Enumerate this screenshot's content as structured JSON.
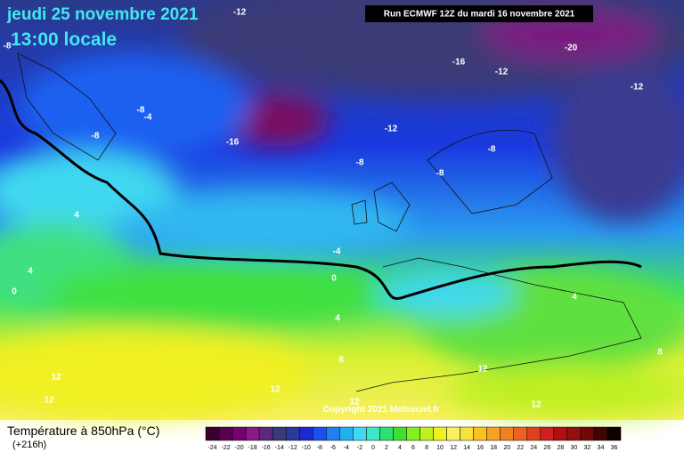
{
  "header": {
    "date": "jeudi 25 novembre 2021",
    "time": "13:00 locale",
    "run": "Run ECMWF 12Z du mardi 16 novembre 2021"
  },
  "map_labels": [
    "-12",
    "-8",
    "-16",
    "-12",
    "-20",
    "-12",
    "-8",
    "-4",
    "-8",
    "-16",
    "-12",
    "-8",
    "-8",
    "-8",
    "4",
    "-4",
    "0",
    "4",
    "0",
    "4",
    "4",
    "8",
    "12",
    "12",
    "12",
    "12",
    "12",
    "12",
    "8"
  ],
  "copyright": "Copyright 2021 Meteociel.fr",
  "legend": {
    "title": "Température à 850hPa (°C)",
    "subtitle": "(+216h)",
    "labels": [
      "-24",
      "-22",
      "-20",
      "-18",
      "-16",
      "-14",
      "-12",
      "-10",
      "-8",
      "-6",
      "-4",
      "-2",
      "0",
      "2",
      "4",
      "6",
      "8",
      "10",
      "12",
      "14",
      "16",
      "18",
      "20",
      "22",
      "24",
      "26",
      "28",
      "30",
      "32",
      "34",
      "36"
    ],
    "colors": [
      "#3a0030",
      "#5a0050",
      "#780070",
      "#8a1a8a",
      "#5a2a78",
      "#3a3a78",
      "#2a3a9a",
      "#1a2ad0",
      "#1a50f0",
      "#2080f0",
      "#20b0f0",
      "#40d8f0",
      "#40e8c8",
      "#30e070",
      "#40e030",
      "#80f020",
      "#c0f020",
      "#f0f020",
      "#f8f060",
      "#f8e040",
      "#f8c020",
      "#f8a020",
      "#f08020",
      "#f06020",
      "#e04020",
      "#d02020",
      "#b01010",
      "#901010",
      "#700808",
      "#400404",
      "#100000"
    ]
  }
}
